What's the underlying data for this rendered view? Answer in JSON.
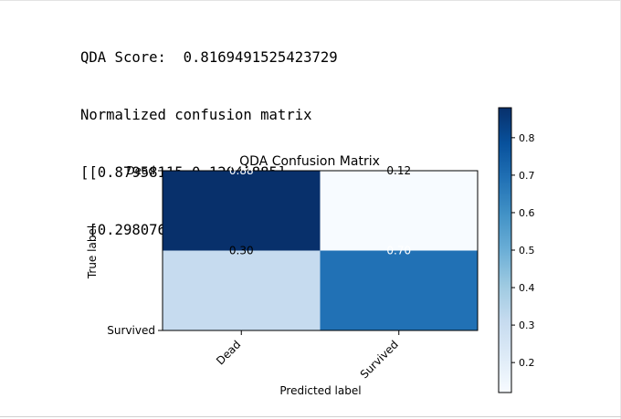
{
  "output": {
    "score_line": "QDA Score:  0.8169491525423729",
    "matrix_title": "Normalized confusion matrix",
    "matrix_row1": "[[0.87958115 0.12041885]",
    "matrix_row2": " [0.29807692 0.70192308]]"
  },
  "chart_data": {
    "type": "heatmap",
    "title": "QDA Confusion Matrix",
    "xlabel": "Predicted label",
    "ylabel": "True label",
    "x_categories": [
      "Dead",
      "Survived"
    ],
    "y_categories": [
      "Dead",
      "Survived"
    ],
    "values": [
      [
        0.88,
        0.12
      ],
      [
        0.3,
        0.7
      ]
    ],
    "cell_labels": [
      [
        "0.88",
        "0.12"
      ],
      [
        "0.30",
        "0.70"
      ]
    ],
    "cell_label_colors": [
      [
        "#ffffff",
        "#000000"
      ],
      [
        "#000000",
        "#ffffff"
      ]
    ],
    "cell_colors": [
      [
        "#08306b",
        "#f7fbff"
      ],
      [
        "#c6dbef",
        "#2171b5"
      ]
    ],
    "colormap": "Blues",
    "colorbar": {
      "range": [
        0.12,
        0.88
      ],
      "ticks": [
        0.2,
        0.3,
        0.4,
        0.5,
        0.6,
        0.7,
        0.8
      ],
      "tick_labels": [
        "0.2",
        "0.3",
        "0.4",
        "0.5",
        "0.6",
        "0.7",
        "0.8"
      ]
    }
  }
}
